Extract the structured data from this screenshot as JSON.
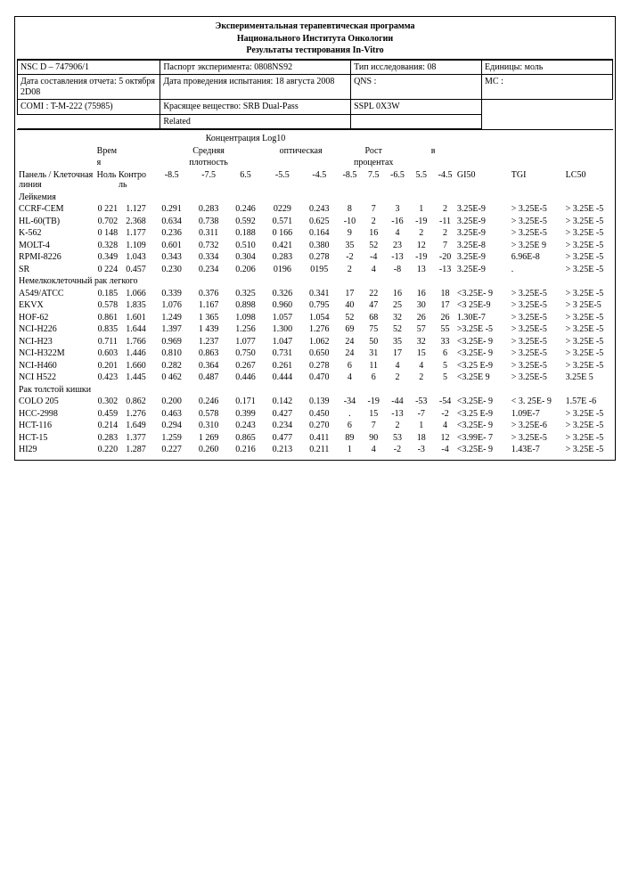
{
  "titles": {
    "t1": "Экспериментальная терапевтическая программа",
    "t2": "Национального Института Онкологии",
    "t3": "Результаты тестирования In-Vitro"
  },
  "hdr": {
    "nsc_label": "NSC  D – 747906/1",
    "passport": "Паспорт эксперимента: 0808NS92",
    "study_type": "Тип исследования: 08",
    "units": "Единицы: моль",
    "report_date": "Дата составления отчета: 5 октября 2D08",
    "test_date": "Дата проведения испытания:  18 августа 2008",
    "qns": "QNS :",
    "mc": "MC :",
    "comi": "COMI : T-M-222 (75985)",
    "stain": "Красящее   вещество:        SRB    Dual-Pass",
    "sspl": "SSPL                  0X3W",
    "related": "Related"
  },
  "super": {
    "conc": "Концентрация Log10",
    "od": "Средняя      оптическая плотность",
    "growth": "Рост       процентах       в"
  },
  "col": {
    "panel": "Панель / Клеточная линия",
    "time": "Врем я Ноль",
    "ctrl": "Контро ль",
    "d1": "-8.5",
    "d2": "-7.5",
    "d3": "6.5",
    "d4": "-5.5",
    "d5": "-4.5",
    "p1": "-8.5",
    "p2": "7.5",
    "p3": "-6.5",
    "p4": "5.5",
    "p5": "-4.5",
    "gi": "GI50",
    "tgi": "TGI",
    "lc": "LC50"
  },
  "sections": [
    {
      "name": "Лейкемия",
      "rows": [
        {
          "n": "CCRF-CEM",
          "t": "0 221",
          "c": "1.127",
          "d": [
            "0.291",
            "0.283",
            "0.246",
            "0229",
            "0.243"
          ],
          "p": [
            "8",
            "7",
            "3",
            "1",
            "2"
          ],
          "gi": "3.25E-9",
          "tgi": "> 3.25E-5",
          "lc": "> 3.25E -5"
        },
        {
          "n": "HL-60(TB)",
          "t": "0.702",
          "c": "2.368",
          "d": [
            "0.634",
            "0.738",
            "0.592",
            "0.571",
            "0.625"
          ],
          "p": [
            "-10",
            "2",
            "-16",
            "-19",
            "-11"
          ],
          "gi": "3.25E-9",
          "tgi": "> 3.25E-5",
          "lc": "> 3.25E -5"
        },
        {
          "n": "K-562",
          "t": "0 148",
          "c": "1.177",
          "d": [
            "0.236",
            "0.311",
            "0.188",
            "0 166",
            "0.164"
          ],
          "p": [
            "9",
            "16",
            "4",
            "2",
            "2"
          ],
          "gi": "3.25E-9",
          "tgi": "> 3.25E-5",
          "lc": "> 3.25E -5"
        },
        {
          "n": "MOLT-4",
          "t": "0.328",
          "c": "1.109",
          "d": [
            "0.601",
            "0.732",
            "0.510",
            "0.421",
            "0.380"
          ],
          "p": [
            "35",
            "52",
            "23",
            "12",
            "7"
          ],
          "gi": "3.25E-8",
          "tgi": "> 3.25E 9",
          "lc": "> 3.25E -5"
        },
        {
          "n": "RPMI-8226",
          "t": "0.349",
          "c": "1.043",
          "d": [
            "0.343",
            "0.334",
            "0.304",
            "0.283",
            "0.278"
          ],
          "p": [
            "-2",
            "-4",
            "-13",
            "-19",
            "-20"
          ],
          "gi": "3.25E-9",
          "tgi": "6.96E-8",
          "lc": "> 3.25E -5"
        },
        {
          "n": "SR",
          "t": "0 224",
          "c": "0.457",
          "d": [
            "0.230",
            "0.234",
            "0.206",
            "0196",
            "0195"
          ],
          "p": [
            "2",
            "4",
            "-8",
            "13",
            "-13"
          ],
          "gi": "3.25E-9",
          "tgi": ".",
          "lc": "> 3.25E -5"
        }
      ]
    },
    {
      "name": "Немелкоклеточный          рак легкого",
      "rows": [
        {
          "n": "A549/ATCC",
          "t": "0.185",
          "c": "1.066",
          "d": [
            "0.339",
            "0.376",
            "0.325",
            "0.326",
            "0.341"
          ],
          "p": [
            "17",
            "22",
            "16",
            "16",
            "18"
          ],
          "gi": "<3.25E- 9",
          "tgi": "> 3.25E-5",
          "lc": "> 3.25E -5"
        },
        {
          "n": "EKVX",
          "t": "0.578",
          "c": "1.835",
          "d": [
            "1.076",
            "1.167",
            "0.898",
            "0.960",
            "0.795"
          ],
          "p": [
            "40",
            "47",
            "25",
            "30",
            "17"
          ],
          "gi": "<3 25E-9",
          "tgi": "> 3.25E-5",
          "lc": ">          3 25E-5"
        },
        {
          "n": "HOF-62",
          "t": "0.861",
          "c": "1.601",
          "d": [
            "1.249",
            "1 365",
            "1.098",
            "1.057",
            "1.054"
          ],
          "p": [
            "52",
            "68",
            "32",
            "26",
            "26"
          ],
          "gi": "1.30E-7",
          "tgi": "> 3.25E-5",
          "lc": "> 3.25E -5"
        },
        {
          "n": "NCI-H226",
          "t": "0.835",
          "c": "1.644",
          "d": [
            "1.397",
            "1 439",
            "1.256",
            "1.300",
            "1.276"
          ],
          "p": [
            "69",
            "75",
            "52",
            "57",
            "55"
          ],
          "gi": ">3.25E -5",
          "tgi": "> 3.25E-5",
          "lc": "> 3.25E -5"
        },
        {
          "n": "NCI-H23",
          "t": "0.711",
          "c": "1.766",
          "d": [
            "0.969",
            "1.237",
            "1.077",
            "1.047",
            "1.062"
          ],
          "p": [
            "24",
            "50",
            "35",
            "32",
            "33"
          ],
          "gi": "<3.25E- 9",
          "tgi": "> 3.25E-5",
          "lc": "> 3.25E -5"
        },
        {
          "n": "NCI-H322M",
          "t": "0.603",
          "c": "1.446",
          "d": [
            "0.810",
            "0.863",
            "0.750",
            "0.731",
            "0.650"
          ],
          "p": [
            "24",
            "31",
            "17",
            "15",
            "6"
          ],
          "gi": "<3.25E- 9",
          "tgi": "> 3.25E-5",
          "lc": "> 3.25E -5"
        },
        {
          "n": "NCI-H460",
          "t": "0.201",
          "c": "1.660",
          "d": [
            "0.282",
            "0.364",
            "0.267",
            "0.261",
            "0.278"
          ],
          "p": [
            "6",
            "11",
            "4",
            "4",
            "5"
          ],
          "gi": "<3.25 E-9",
          "tgi": "> 3.25E-5",
          "lc": "> 3.25E -5"
        },
        {
          "n": "NCI H522",
          "t": "0.423",
          "c": "1.445",
          "d": [
            "0 462",
            "0.487",
            "0.446",
            "0.444",
            "0.470"
          ],
          "p": [
            "4",
            "6",
            "2",
            "2",
            "5"
          ],
          "gi": "<3.25E 9",
          "tgi": "> 3.25E-5",
          "lc": "3.25E 5"
        }
      ]
    },
    {
      "name": "Рак      толстой кишки",
      "rows": [
        {
          "n": "COLO 205",
          "t": "0.302",
          "c": "0.862",
          "d": [
            "0.200",
            "0.246",
            "0.171",
            "0.142",
            "0.139"
          ],
          "p": [
            "-34",
            "-19",
            "-44",
            "-53",
            "-54"
          ],
          "gi": "<3.25E- 9",
          "tgi": "<  3. 25E- 9",
          "lc": "1.57E -6"
        },
        {
          "n": "HCC-2998",
          "t": "0.459",
          "c": "1.276",
          "d": [
            "0.463",
            "0.578",
            "0.399",
            "0.427",
            "0.450"
          ],
          "p": [
            ".",
            "15",
            "-13",
            "-7",
            "-2"
          ],
          "gi": "<3.25 E-9",
          "tgi": "1.09E-7",
          "lc": "> 3.25E -5"
        },
        {
          "n": "HCT-116",
          "t": "0.214",
          "c": "1.649",
          "d": [
            "0.294",
            "0.310",
            "0.243",
            "0.234",
            "0.270"
          ],
          "p": [
            "6",
            "7",
            "2",
            "1",
            "4"
          ],
          "gi": "<3.25E- 9",
          "tgi": "> 3.25E-6",
          "lc": "> 3.25E -5"
        },
        {
          "n": "HCT-15",
          "t": "0.283",
          "c": "1.377",
          "d": [
            "1.259",
            "1 269",
            "0.865",
            "0.477",
            "0.411"
          ],
          "p": [
            "89",
            "90",
            "53",
            "18",
            "12"
          ],
          "gi": "<3.99E- 7",
          "tgi": "> 3.25E-5",
          "lc": "> 3.25E -5"
        },
        {
          "n": "HI29",
          "t": "0.220",
          "c": "1.287",
          "d": [
            "0.227",
            "0.260",
            "0.216",
            "0.213",
            "0.211"
          ],
          "p": [
            "1",
            "4",
            "-2",
            "-3",
            "-4"
          ],
          "gi": "<3.25E- 9",
          "tgi": "1.43E-7",
          "lc": "> 3.25E -5"
        }
      ]
    }
  ]
}
